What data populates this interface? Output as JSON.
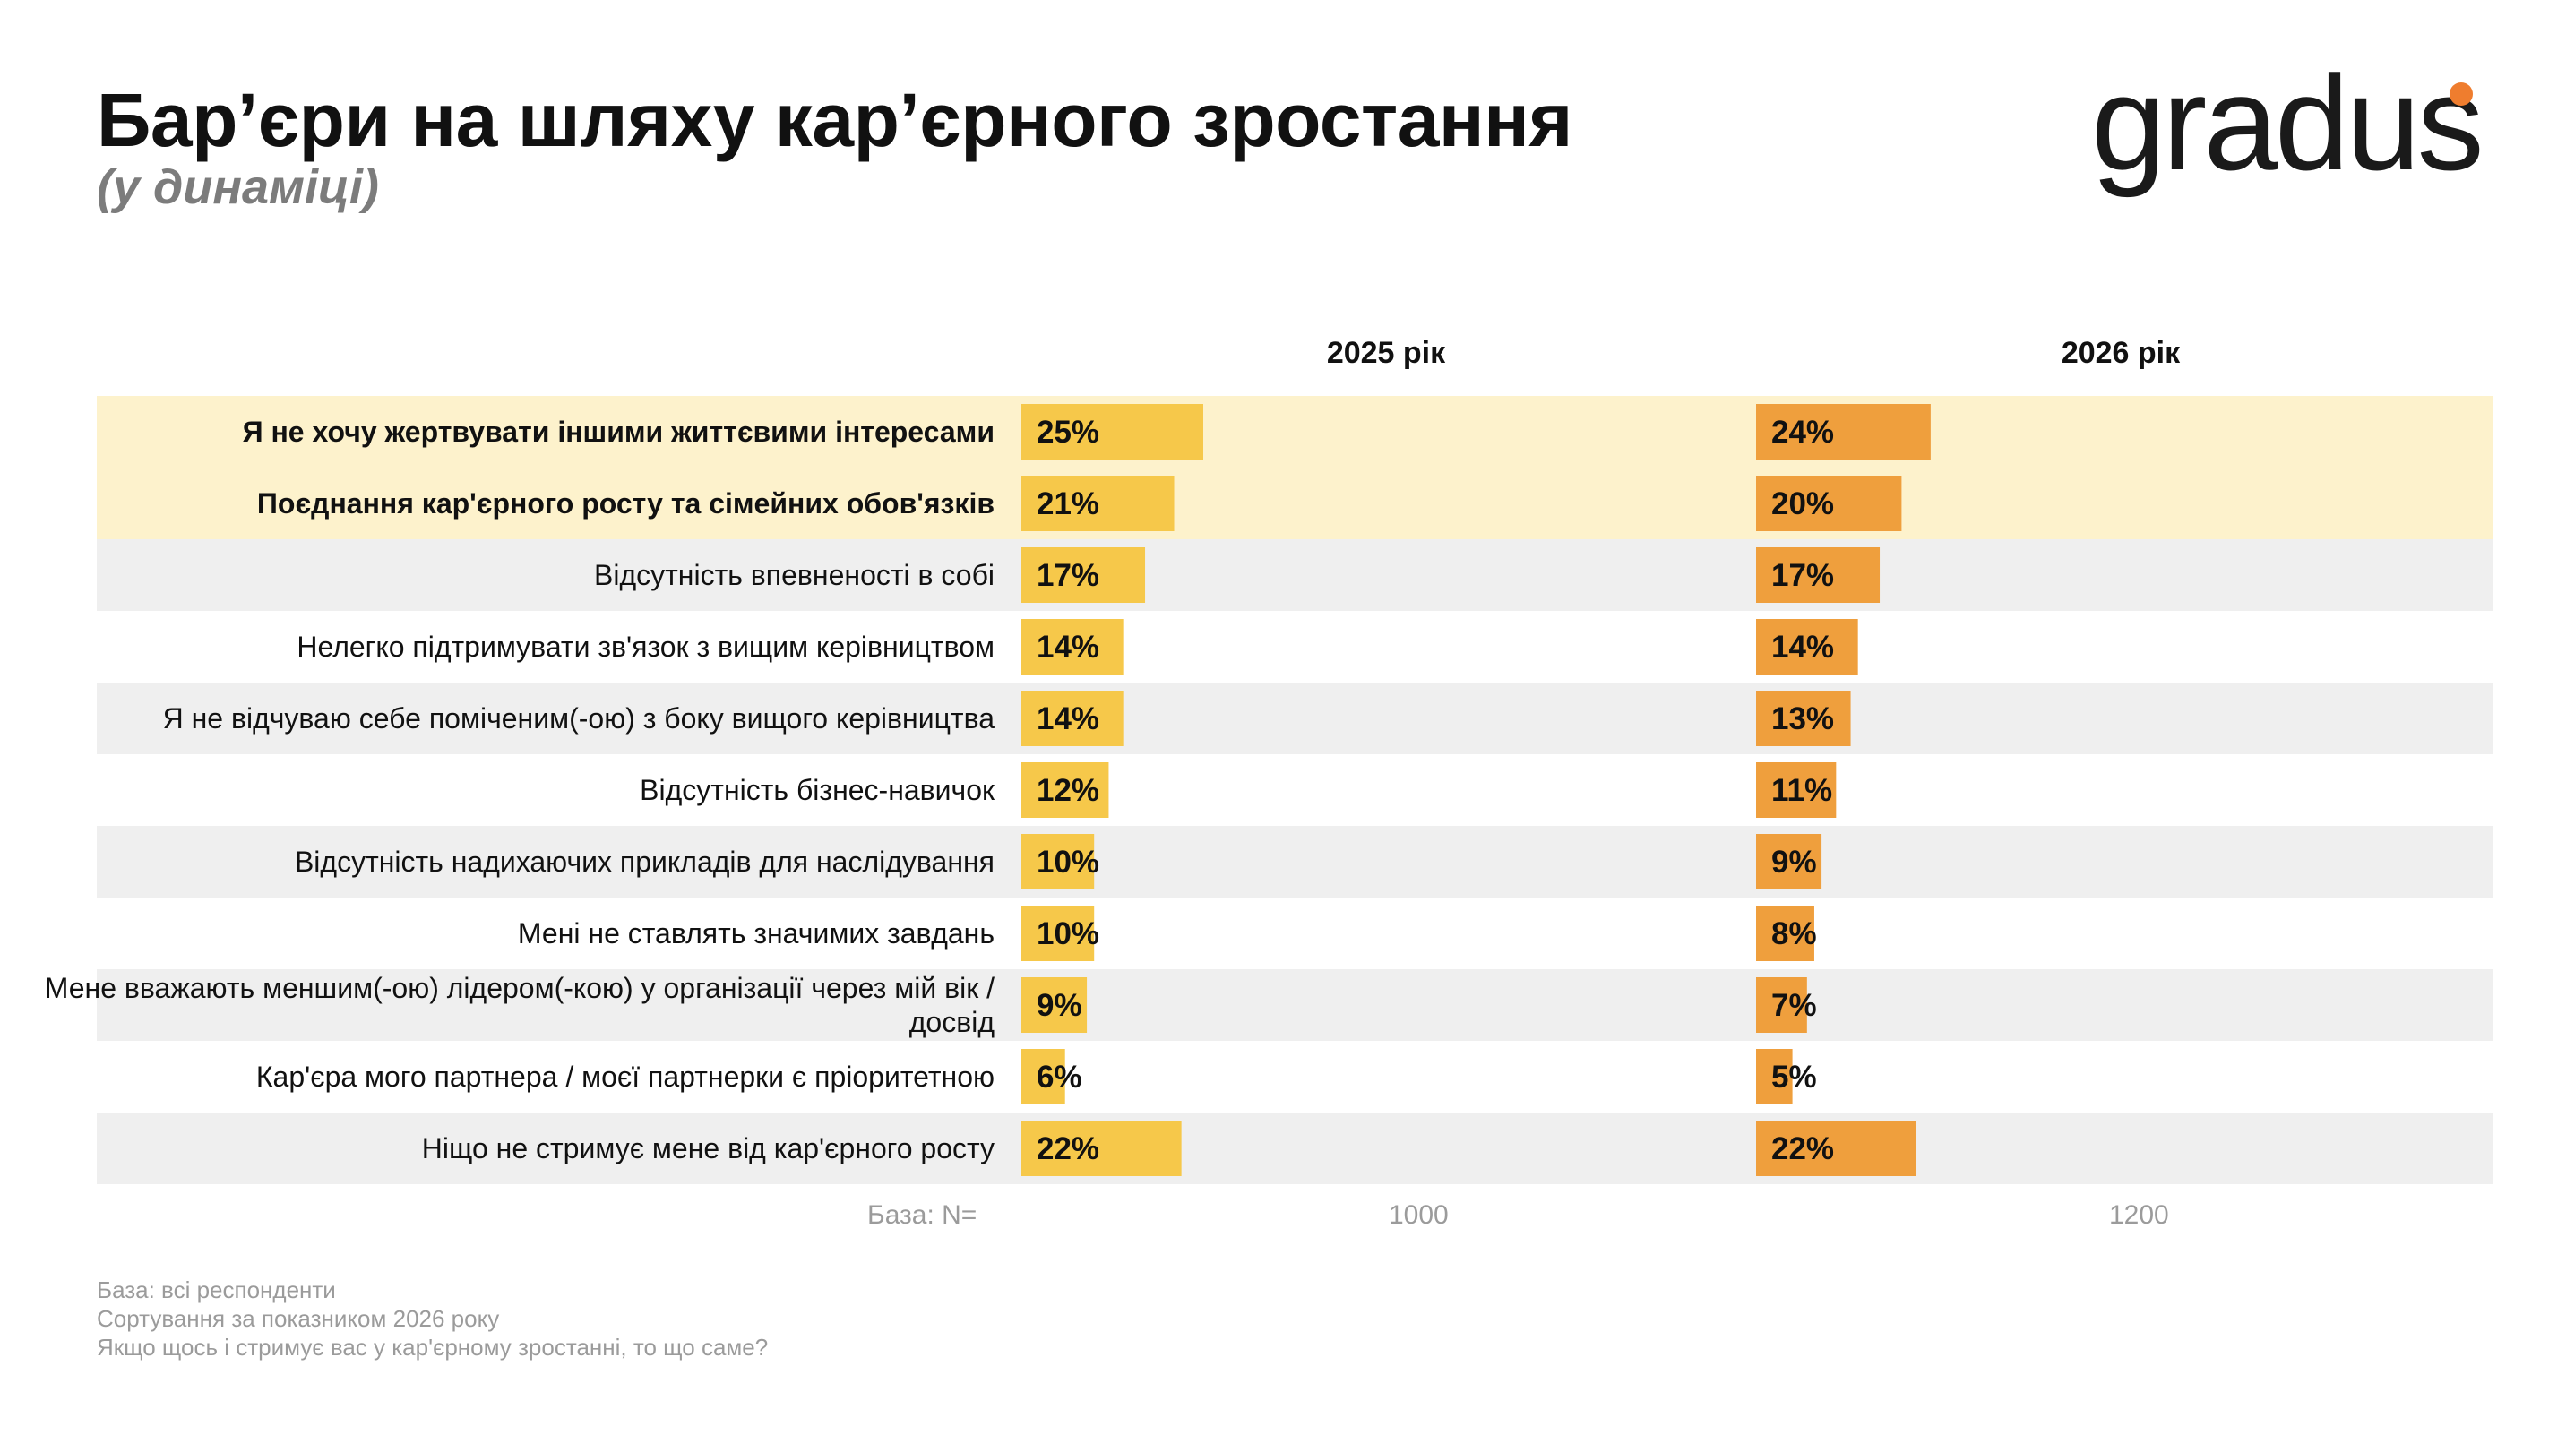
{
  "header": {
    "title": "Бар’єри на шляху кар’єрного зростання",
    "subtitle": "(у динаміці)"
  },
  "logo": {
    "text": "gradus",
    "dot_color": "#ef7d2e"
  },
  "colors": {
    "highlight_band": "#fdf2cc",
    "grey_band": "#efefef",
    "bar_2025": "#f6c84a",
    "bar_2026": "#ef9f3d"
  },
  "base": {
    "label": "База: N=",
    "n_2025": "1000",
    "n_2026": "1200"
  },
  "footnotes": [
    "База: всі респонденти",
    "Сортування за показником 2026 року",
    "Якщо щось і стримує вас у кар'єрному зростанні, то що саме?"
  ],
  "chart_data": {
    "type": "bar",
    "orientation": "horizontal",
    "value_suffix": "%",
    "categories": [
      "Я не хочу жертвувати іншими життєвими інтересами",
      "Поєднання кар'єрного росту та сімейних обов'язків",
      "Відсутність впевненості в собі",
      "Нелегко підтримувати зв'язок з вищим керівництвом",
      "Я не відчуваю себе поміченим(-ою) з боку вищого керівництва",
      "Відсутність бізнес-навичок",
      "Відсутність надихаючих прикладів для наслідування",
      "Мені не ставлять значимих завдань",
      "Мене вважають меншим(-ою) лідером(-кою) у організації через мій вік / досвід",
      "Кар'єра мого партнера / моєї партнерки є пріоритетною",
      "Ніщо не стримує мене від кар'єрного росту"
    ],
    "highlighted": [
      true,
      true,
      false,
      false,
      false,
      false,
      false,
      false,
      false,
      false,
      false
    ],
    "series": [
      {
        "name": "2025 рік",
        "values": [
          25,
          21,
          17,
          14,
          14,
          12,
          10,
          10,
          9,
          6,
          22
        ]
      },
      {
        "name": "2026 рік",
        "values": [
          24,
          20,
          17,
          14,
          13,
          11,
          9,
          8,
          7,
          5,
          22
        ]
      }
    ]
  }
}
